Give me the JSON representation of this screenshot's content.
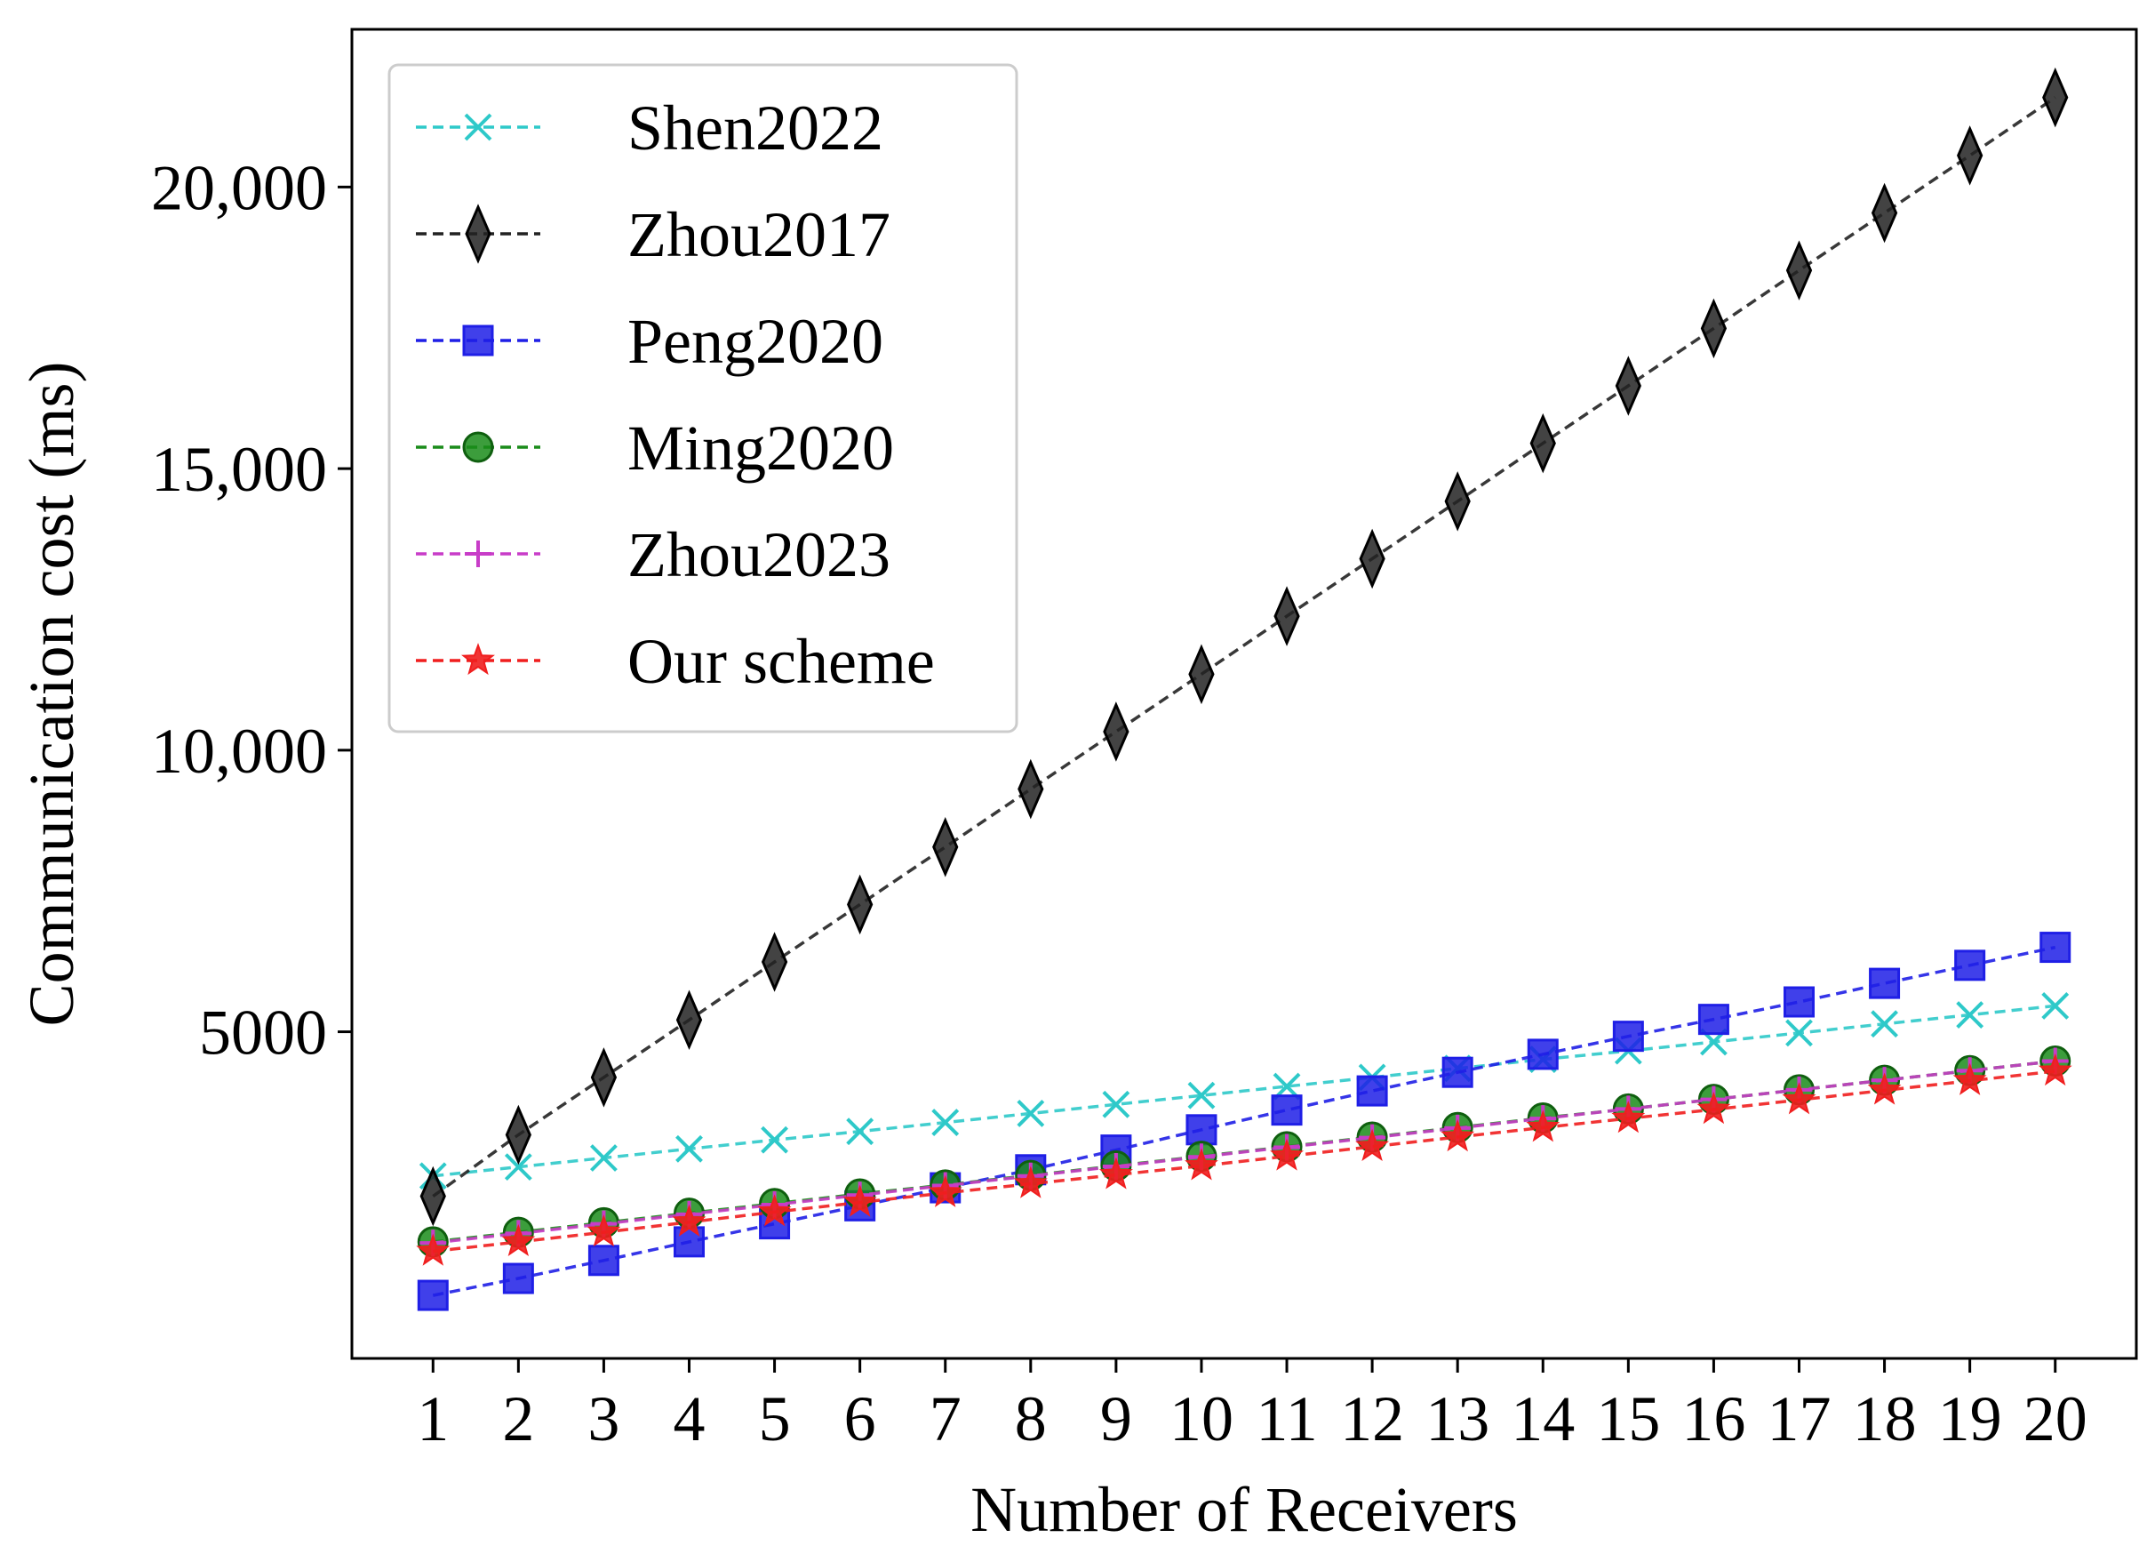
{
  "chart_data": {
    "type": "line",
    "title": "",
    "xlabel": "Number of Receivers",
    "ylabel": "Communication cost (ms)",
    "x": [
      1,
      2,
      3,
      4,
      5,
      6,
      7,
      8,
      9,
      10,
      11,
      12,
      13,
      14,
      15,
      16,
      17,
      18,
      19,
      20
    ],
    "x_ticks": [
      "1",
      "2",
      "3",
      "4",
      "5",
      "6",
      "7",
      "8",
      "9",
      "10",
      "11",
      "12",
      "13",
      "14",
      "15",
      "16",
      "17",
      "18",
      "19",
      "20"
    ],
    "xlim": [
      0.05,
      20.95
    ],
    "ylim": [
      -800,
      22800
    ],
    "y_ticks": [
      5000,
      10000,
      15000,
      20000
    ],
    "y_tick_labels": [
      "5000",
      "10,000",
      "15,000",
      "20,000"
    ],
    "grid": false,
    "legend_position": "top-left",
    "series": [
      {
        "name": "Shen2022",
        "color": "#2ec9c9",
        "marker": "x",
        "values": [
          2440,
          2600,
          2760,
          2920,
          3080,
          3230,
          3390,
          3550,
          3710,
          3870,
          4030,
          4190,
          4350,
          4510,
          4660,
          4820,
          4980,
          5140,
          5300,
          5460
        ]
      },
      {
        "name": "Zhou2017",
        "color": "#222222",
        "marker": "thin-diamond",
        "values": [
          2080,
          3170,
          4190,
          5210,
          6240,
          7260,
          8280,
          9310,
          10330,
          11350,
          12380,
          13400,
          14420,
          15450,
          16470,
          17490,
          18520,
          19540,
          20560,
          21590
        ]
      },
      {
        "name": "Peng2020",
        "color": "#1f1fe6",
        "marker": "square",
        "values": [
          320,
          620,
          940,
          1270,
          1590,
          1910,
          2230,
          2550,
          2900,
          3260,
          3610,
          3950,
          4280,
          4600,
          4920,
          5220,
          5530,
          5860,
          6180,
          6500
        ]
      },
      {
        "name": "Ming2020",
        "color": "#1a8c1a",
        "marker": "circle",
        "values": [
          1270,
          1440,
          1610,
          1780,
          1950,
          2120,
          2280,
          2450,
          2620,
          2790,
          2960,
          3130,
          3300,
          3470,
          3630,
          3800,
          3970,
          4140,
          4310,
          4480
        ]
      },
      {
        "name": "Zhou2023",
        "color": "#c83cc8",
        "marker": "plus",
        "values": [
          1250,
          1420,
          1590,
          1760,
          1930,
          2100,
          2270,
          2440,
          2610,
          2780,
          2950,
          3120,
          3290,
          3460,
          3630,
          3800,
          3970,
          4140,
          4310,
          4480
        ]
      },
      {
        "name": "Our scheme",
        "color": "#f01e1e",
        "marker": "star",
        "values": [
          1100,
          1270,
          1440,
          1620,
          1800,
          1970,
          2140,
          2300,
          2460,
          2620,
          2790,
          2960,
          3130,
          3300,
          3460,
          3620,
          3790,
          3960,
          4130,
          4300
        ]
      }
    ]
  }
}
